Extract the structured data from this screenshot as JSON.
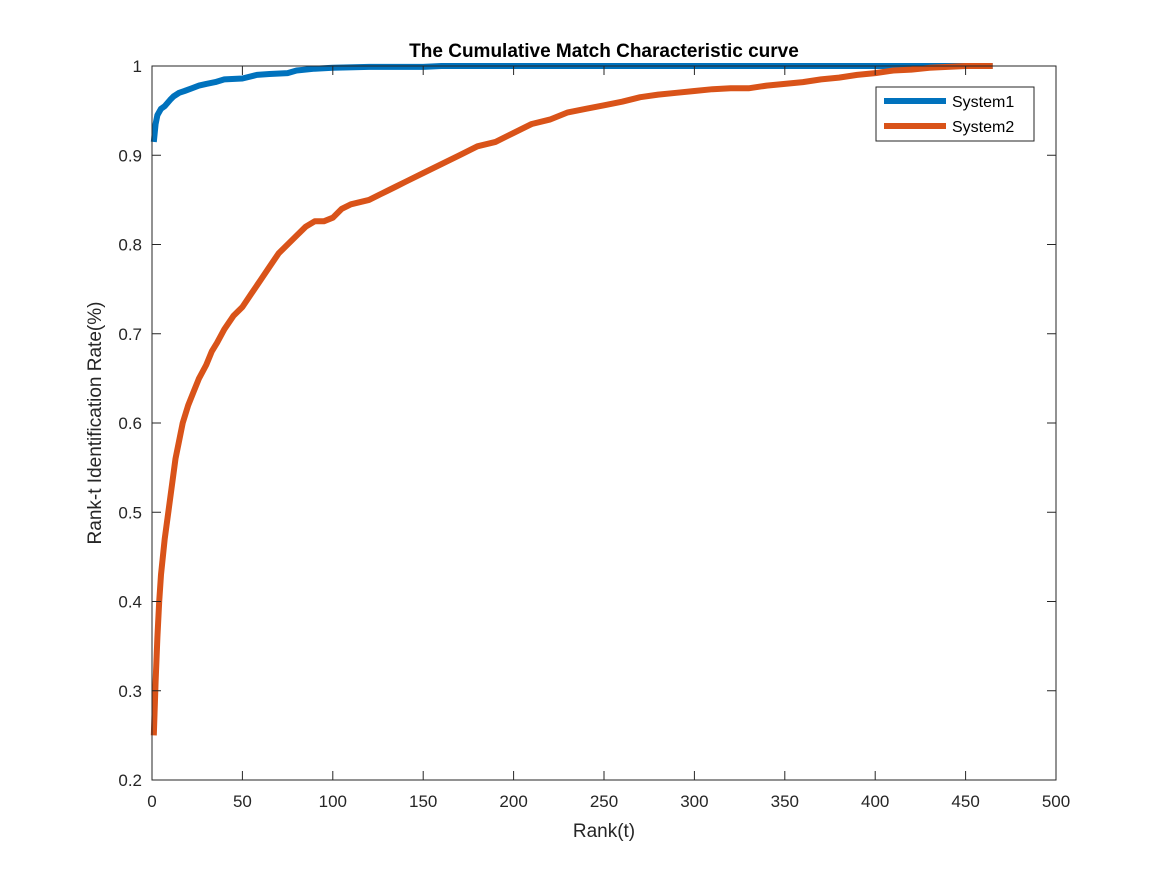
{
  "chart_data": {
    "type": "line",
    "title": "The Cumulative Match Characteristic curve",
    "xlabel": "Rank(t)",
    "ylabel": "Rank-t Identification Rate(%)",
    "xlim": [
      0,
      500
    ],
    "ylim": [
      0.2,
      1
    ],
    "xticks": [
      0,
      50,
      100,
      150,
      200,
      250,
      300,
      350,
      400,
      450,
      500
    ],
    "yticks": [
      0.2,
      0.3,
      0.4,
      0.5,
      0.6,
      0.7,
      0.8,
      0.9,
      1
    ],
    "xtick_labels": [
      "0",
      "50",
      "100",
      "150",
      "200",
      "250",
      "300",
      "350",
      "400",
      "450",
      "500"
    ],
    "ytick_labels": [
      "0.2",
      "0.3",
      "0.4",
      "0.5",
      "0.6",
      "0.7",
      "0.8",
      "0.9",
      "1"
    ],
    "grid": false,
    "legend_position": "top-right",
    "series": [
      {
        "name": "System1",
        "color": "#0072BD",
        "x": [
          1,
          2,
          3,
          5,
          7,
          10,
          12,
          15,
          18,
          22,
          26,
          30,
          35,
          40,
          50,
          58,
          65,
          75,
          80,
          90,
          100,
          120,
          150,
          160,
          200,
          300,
          400,
          430,
          465
        ],
        "y": [
          0.915,
          0.935,
          0.945,
          0.952,
          0.955,
          0.962,
          0.966,
          0.97,
          0.972,
          0.975,
          0.978,
          0.98,
          0.982,
          0.985,
          0.986,
          0.99,
          0.991,
          0.992,
          0.995,
          0.997,
          0.998,
          0.999,
          0.999,
          1.0,
          1.0,
          1.0,
          1.0,
          1.0,
          1.0
        ]
      },
      {
        "name": "System2",
        "color": "#D95319",
        "x": [
          1,
          2,
          3,
          4,
          5,
          7,
          9,
          11,
          13,
          15,
          17,
          20,
          23,
          26,
          30,
          33,
          36,
          40,
          45,
          50,
          55,
          60,
          65,
          70,
          75,
          80,
          85,
          90,
          95,
          100,
          105,
          110,
          120,
          125,
          130,
          135,
          140,
          150,
          160,
          170,
          180,
          190,
          200,
          210,
          220,
          230,
          240,
          250,
          260,
          270,
          280,
          290,
          300,
          310,
          320,
          330,
          340,
          350,
          360,
          370,
          380,
          390,
          400,
          410,
          420,
          430,
          440,
          450,
          465
        ],
        "y": [
          0.25,
          0.31,
          0.36,
          0.4,
          0.43,
          0.47,
          0.5,
          0.53,
          0.56,
          0.58,
          0.6,
          0.62,
          0.635,
          0.65,
          0.665,
          0.68,
          0.69,
          0.705,
          0.72,
          0.73,
          0.745,
          0.76,
          0.775,
          0.79,
          0.8,
          0.81,
          0.82,
          0.826,
          0.826,
          0.83,
          0.84,
          0.845,
          0.85,
          0.855,
          0.86,
          0.865,
          0.87,
          0.88,
          0.89,
          0.9,
          0.91,
          0.915,
          0.925,
          0.935,
          0.94,
          0.948,
          0.952,
          0.956,
          0.96,
          0.965,
          0.968,
          0.97,
          0.972,
          0.974,
          0.975,
          0.975,
          0.978,
          0.98,
          0.982,
          0.985,
          0.987,
          0.99,
          0.992,
          0.995,
          0.996,
          0.998,
          0.999,
          1.0,
          1.0
        ]
      }
    ]
  }
}
